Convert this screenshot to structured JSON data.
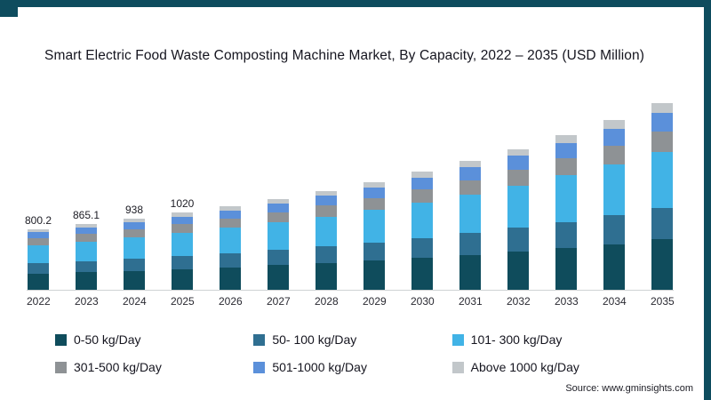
{
  "frame": {
    "border_color": "#0e4c5e"
  },
  "title": "Smart Electric Food Waste Composting Machine Market, By Capacity, 2022 – 2035 (USD Million)",
  "source": "Source: www.gminsights.com",
  "chart_data": {
    "type": "bar",
    "stacked": true,
    "title": "Smart Electric Food Waste Composting Machine Market, By Capacity, 2022 – 2035 (USD Million)",
    "xlabel": "",
    "ylabel": "USD Million",
    "legend_position": "bottom",
    "grid": false,
    "ylim": [
      0,
      2600
    ],
    "categories": [
      "2022",
      "2023",
      "2024",
      "2025",
      "2026",
      "2027",
      "2028",
      "2029",
      "2030",
      "2031",
      "2032",
      "2033",
      "2034",
      "2035"
    ],
    "data_labels": [
      "800.2",
      "865.1",
      "938",
      "1020",
      "",
      "",
      "",
      "",
      "",
      "",
      "",
      "",
      "",
      ""
    ],
    "series": [
      {
        "name": "0-50 kg/Day",
        "color": "#0f4c5c",
        "values": [
          216,
          234,
          253,
          275,
          299,
          325,
          354,
          386,
          421,
          460,
          504,
          552,
          606,
          667
        ]
      },
      {
        "name": "50- 100 kg/Day",
        "color": "#2f6f91",
        "values": [
          136,
          147,
          159,
          173,
          188,
          205,
          223,
          243,
          265,
          290,
          317,
          348,
          382,
          420
        ]
      },
      {
        "name": "101- 300 kg/Day",
        "color": "#41b3e6",
        "values": [
          240,
          260,
          281,
          306,
          332,
          362,
          393,
          428,
          468,
          512,
          560,
          614,
          674,
          741
        ]
      },
      {
        "name": "301-500 kg/Day",
        "color": "#8e9295",
        "values": [
          88,
          95,
          103,
          112,
          122,
          133,
          144,
          157,
          172,
          188,
          205,
          225,
          247,
          272
        ]
      },
      {
        "name": "501-1000 kg/Day",
        "color": "#5b90da",
        "values": [
          80,
          87,
          94,
          102,
          111,
          121,
          131,
          143,
          156,
          171,
          187,
          205,
          225,
          247
        ]
      },
      {
        "name": "Above 1000 kg/Day",
        "color": "#c2c7ca",
        "values": [
          40,
          43,
          47,
          51,
          55,
          60,
          66,
          71,
          78,
          85,
          93,
          102,
          112,
          124
        ]
      }
    ]
  }
}
